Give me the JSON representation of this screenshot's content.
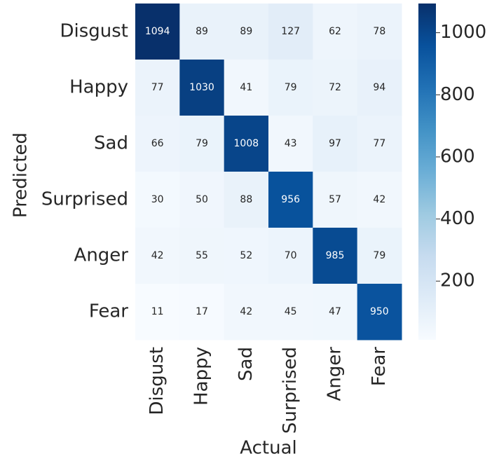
{
  "chart_data": {
    "type": "heatmap",
    "x_label": "Actual",
    "y_label": "Predicted",
    "x_categories": [
      "Disgust",
      "Happy",
      "Sad",
      "Surprised",
      "Anger",
      "Fear"
    ],
    "y_categories": [
      "Disgust",
      "Happy",
      "Sad",
      "Surprised",
      "Anger",
      "Fear"
    ],
    "z": [
      [
        1094,
        89,
        89,
        127,
        62,
        78
      ],
      [
        77,
        1030,
        41,
        79,
        72,
        94
      ],
      [
        66,
        79,
        1008,
        43,
        97,
        77
      ],
      [
        30,
        50,
        88,
        956,
        57,
        42
      ],
      [
        42,
        55,
        52,
        70,
        985,
        79
      ],
      [
        11,
        17,
        42,
        45,
        47,
        950
      ]
    ],
    "clim": [
      11,
      1094
    ],
    "cticks": [
      200,
      400,
      600,
      800,
      1000
    ],
    "colormap": [
      "#f7fbff",
      "#deebf7",
      "#c6dbef",
      "#9ecae1",
      "#6baed6",
      "#4292c6",
      "#2171b5",
      "#08519c",
      "#08306b"
    ]
  }
}
